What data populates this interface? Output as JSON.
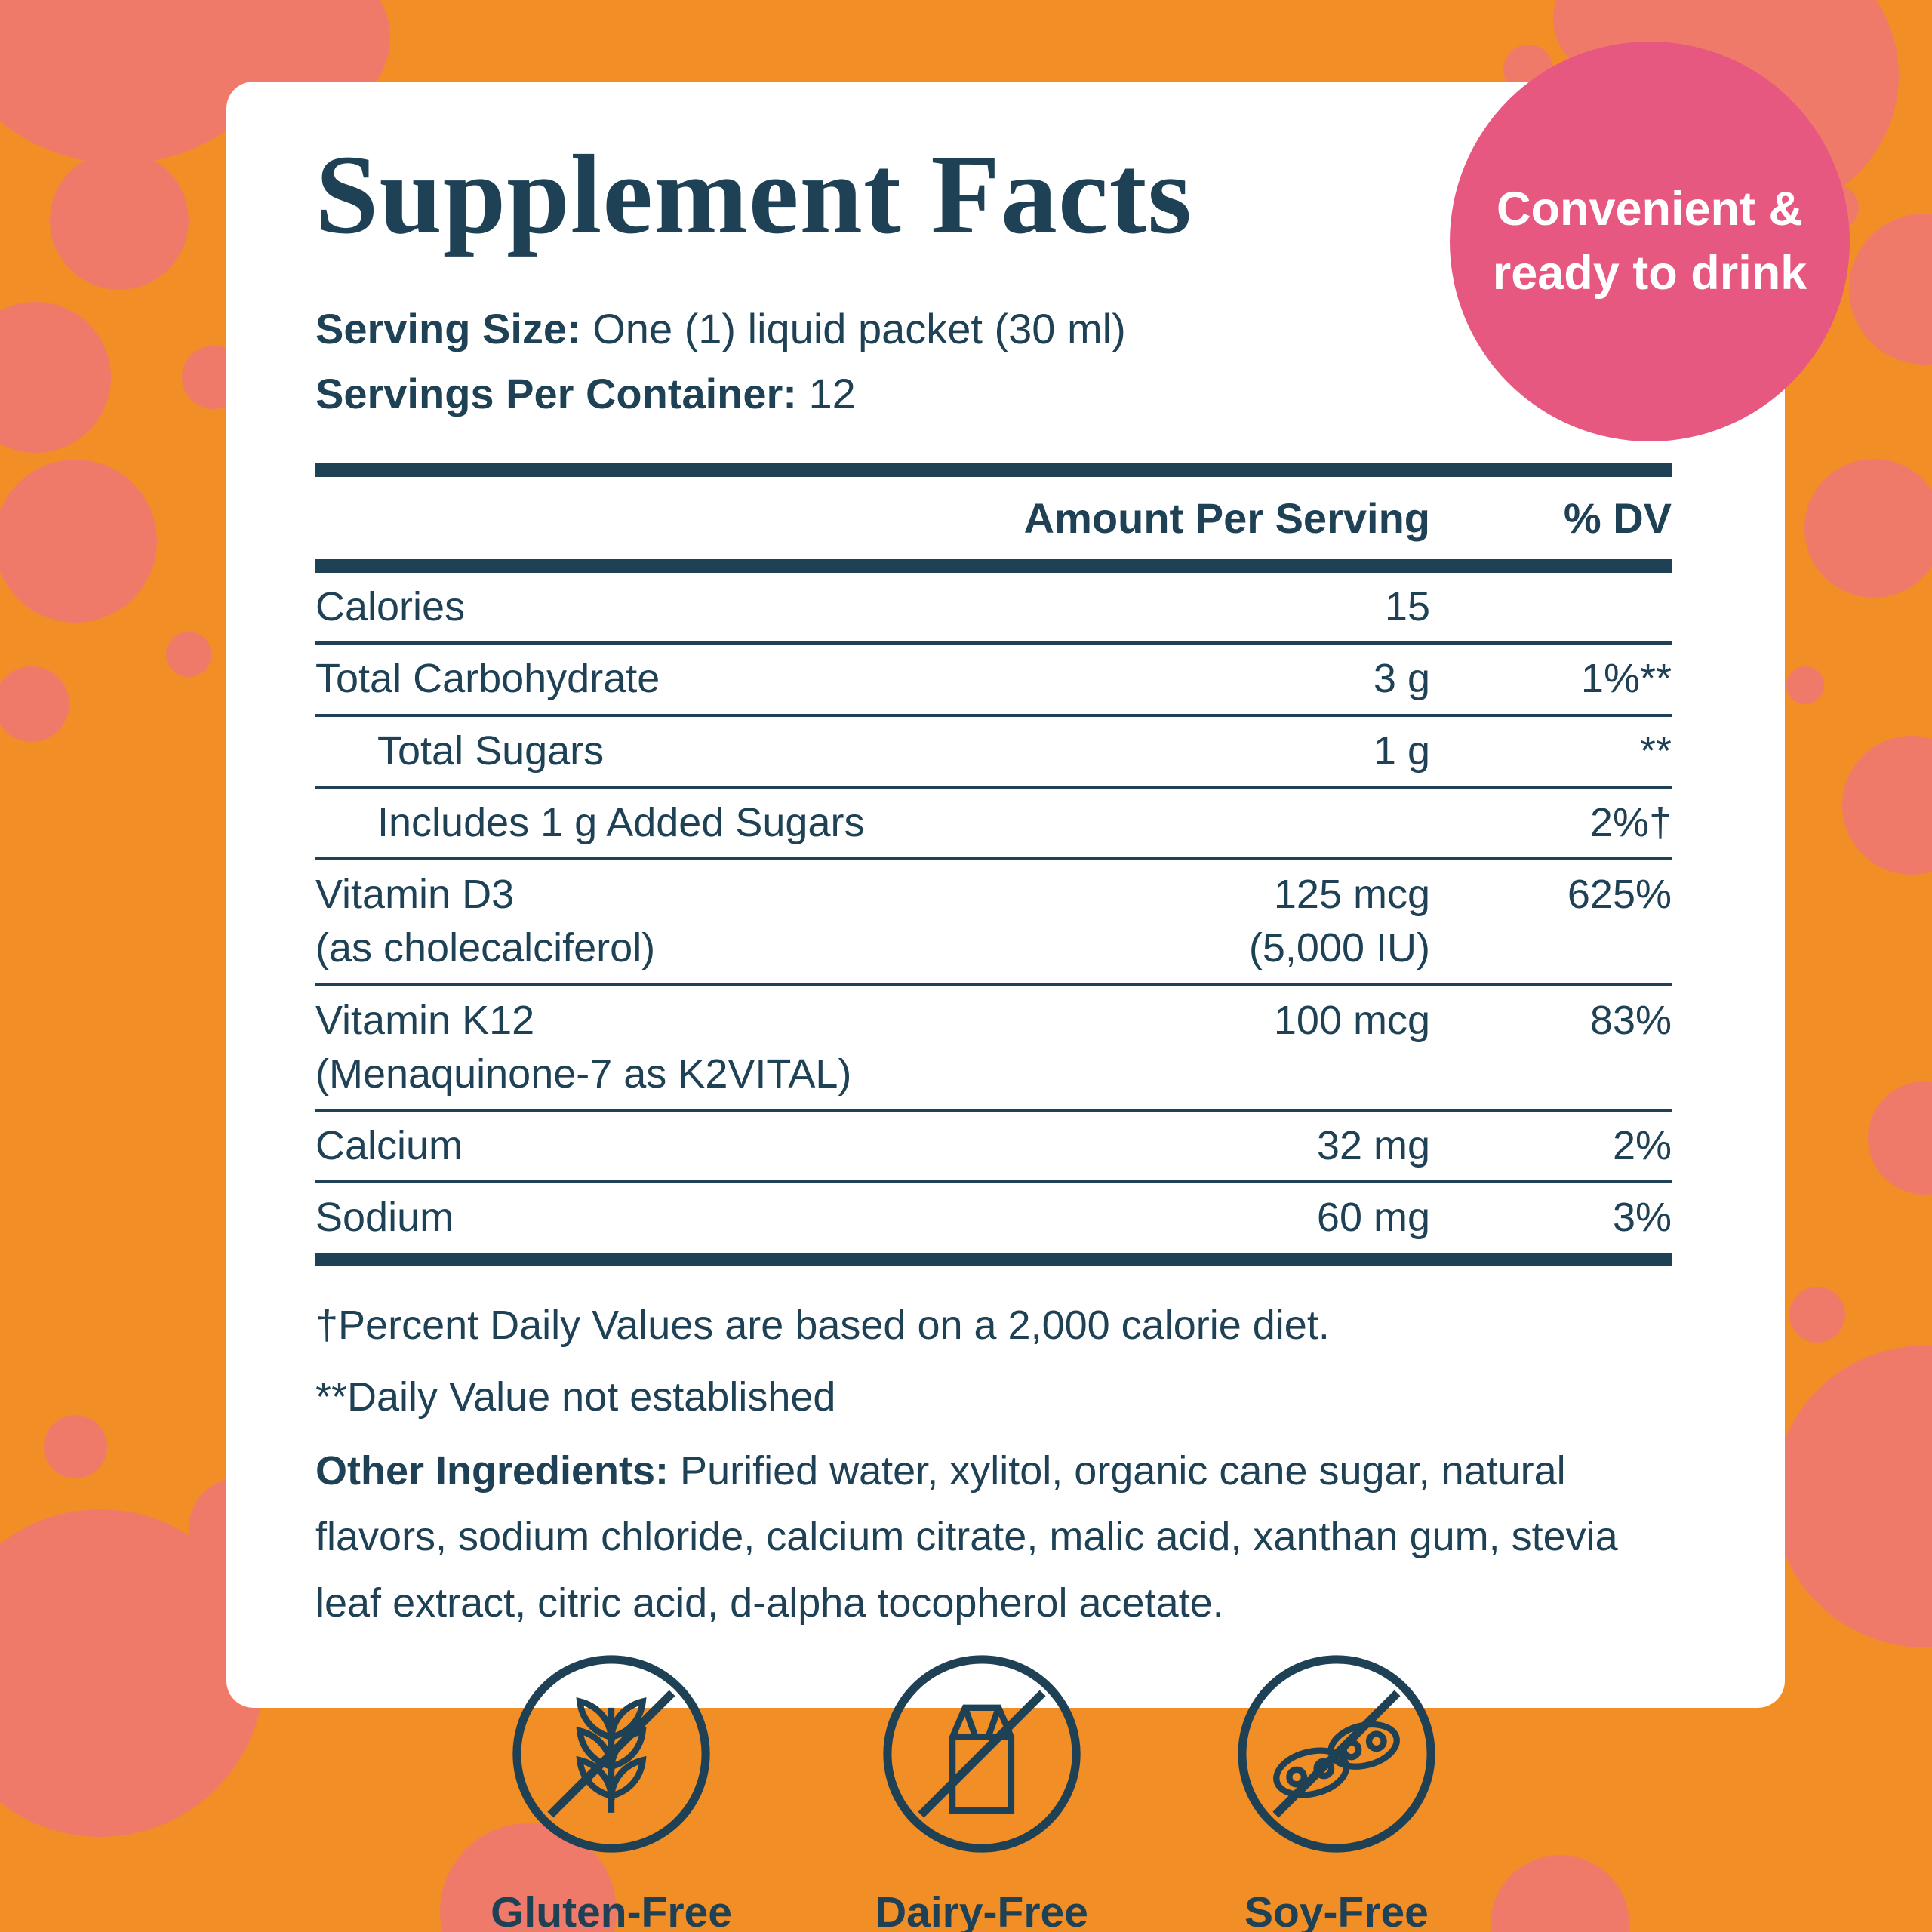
{
  "colors": {
    "background": "#F28E26",
    "bubble": "#F07A6A",
    "card": "#FFFFFF",
    "text": "#1E4155",
    "badge": "#E75881",
    "badge_text": "#FFFFFF"
  },
  "round_badge": {
    "line1": "Convenient &",
    "line2": "ready to drink"
  },
  "header": {
    "title": "Supplement Facts",
    "serving_size_label": "Serving Size:",
    "serving_size_value": "One (1) liquid packet (30 ml)",
    "servings_label": "Servings Per Container:",
    "servings_value": "12"
  },
  "table": {
    "col_amount": "Amount Per Serving",
    "col_dv": "% DV",
    "rows": [
      {
        "name": "Calories",
        "amount": "15",
        "dv": "",
        "indent": false
      },
      {
        "name": "Total Carbohydrate",
        "amount": "3 g",
        "dv": "1%**",
        "indent": false
      },
      {
        "name": "Total Sugars",
        "amount": "1 g",
        "dv": "**",
        "indent": true
      },
      {
        "name": "Includes 1 g Added Sugars",
        "amount": "",
        "dv": "2%†",
        "indent": true
      },
      {
        "name": "Vitamin D3",
        "name2": "(as cholecalciferol)",
        "amount": "125 mcg",
        "amount2": "(5,000 IU)",
        "dv": "625%",
        "indent": false
      },
      {
        "name": "Vitamin K12",
        "name2": "(Menaquinone-7 as K2VITAL)",
        "amount": "100 mcg",
        "dv": "83%",
        "indent": false
      },
      {
        "name": "Calcium",
        "amount": "32 mg",
        "dv": "2%",
        "indent": false
      },
      {
        "name": "Sodium",
        "amount": "60 mg",
        "dv": "3%",
        "indent": false
      }
    ]
  },
  "footnotes": {
    "line1": "†Percent Daily Values are based on a 2,000 calorie diet.",
    "line2": "**Daily Value not established",
    "other_label": "Other Ingredients:",
    "other_text": " Purified water, xylitol, organic cane sugar, natural flavors, sodium chloride, calcium citrate, malic acid, xanthan gum, stevia leaf extract, citric acid, d-alpha tocopherol acetate."
  },
  "bottom_badges": [
    {
      "label": "Gluten-Free",
      "icon": "wheat-icon"
    },
    {
      "label": "Dairy-Free",
      "icon": "milk-carton-icon"
    },
    {
      "label": "Soy-Free",
      "icon": "soybean-icon"
    }
  ]
}
